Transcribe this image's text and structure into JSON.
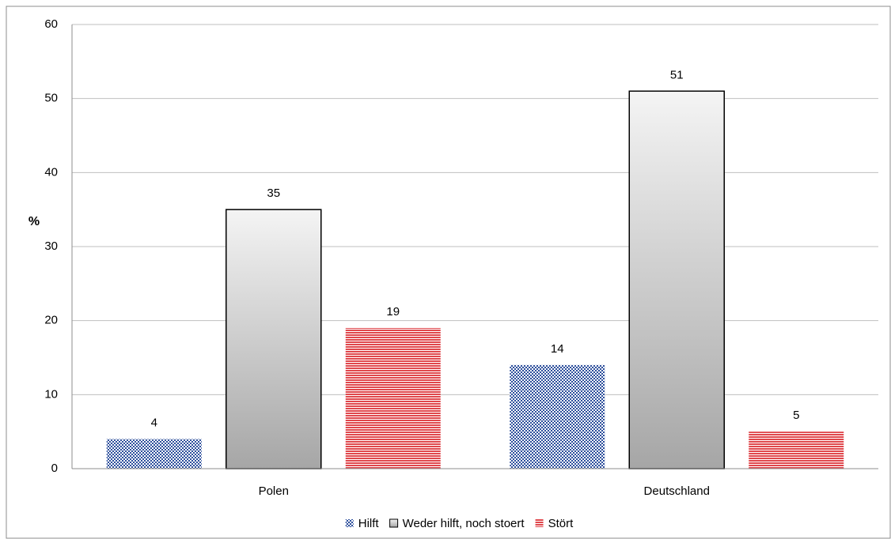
{
  "chart_data": {
    "type": "bar",
    "y_label": "%",
    "categories": [
      "Polen",
      "Deutschland"
    ],
    "series": [
      {
        "name": "Hilft",
        "color": "#2d4f9c",
        "fill": "checker",
        "values": [
          4,
          14
        ]
      },
      {
        "name": "Weder hilft, noch stoert",
        "color": "#a6a6a6",
        "fill": "gradient",
        "values": [
          35,
          51
        ]
      },
      {
        "name": "Stört",
        "color": "#e0474c",
        "fill": "stripes",
        "values": [
          19,
          5
        ]
      }
    ],
    "ylim": [
      0,
      60
    ],
    "yticks": [
      0,
      10,
      20,
      30,
      40,
      50,
      60
    ],
    "grid": true,
    "legend": "bottom"
  }
}
